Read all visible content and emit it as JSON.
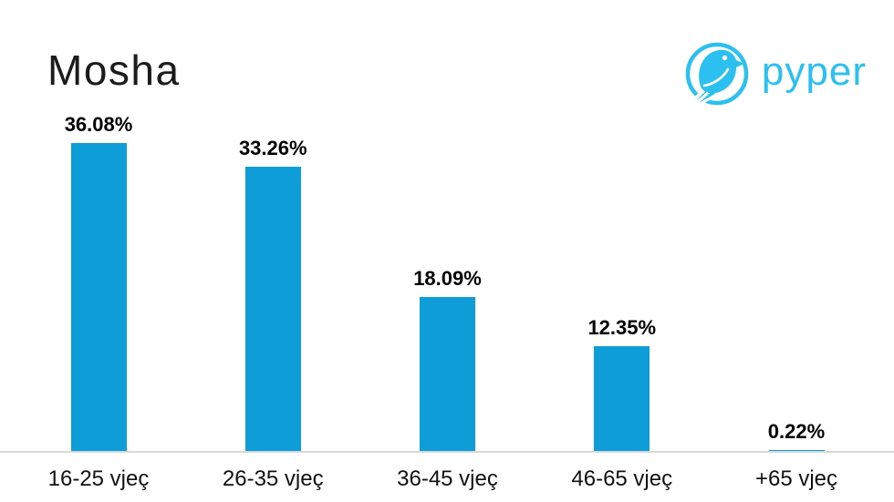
{
  "title": "Mosha",
  "logo": {
    "text": "pyper",
    "icon": "pyper-bird-icon",
    "color": "#2BC0F0"
  },
  "colors": {
    "bar": "#0F9DD8",
    "axis_line": "#D9D9D9",
    "title_text": "#1C1C1C",
    "label_text": "#000000",
    "background": "#FFFFFF"
  },
  "chart_data": {
    "type": "bar",
    "title": "Mosha",
    "categories": [
      "16-25 vjeç",
      "26-35 vjeç",
      "36-45 vjeç",
      "46-65 vjeç",
      "+65 vjeç"
    ],
    "values": [
      36.08,
      33.26,
      18.09,
      12.35,
      0.22
    ],
    "value_labels": [
      "36.08%",
      "33.26%",
      "18.09%",
      "12.35%",
      "0.22%"
    ],
    "xlabel": "",
    "ylabel": "",
    "unit": "%",
    "ylim": [
      0,
      40
    ],
    "grid": false,
    "legend": false,
    "y_axis_visible": false,
    "data_labels_position": "above-bars",
    "bar_color": "#0F9DD8"
  }
}
